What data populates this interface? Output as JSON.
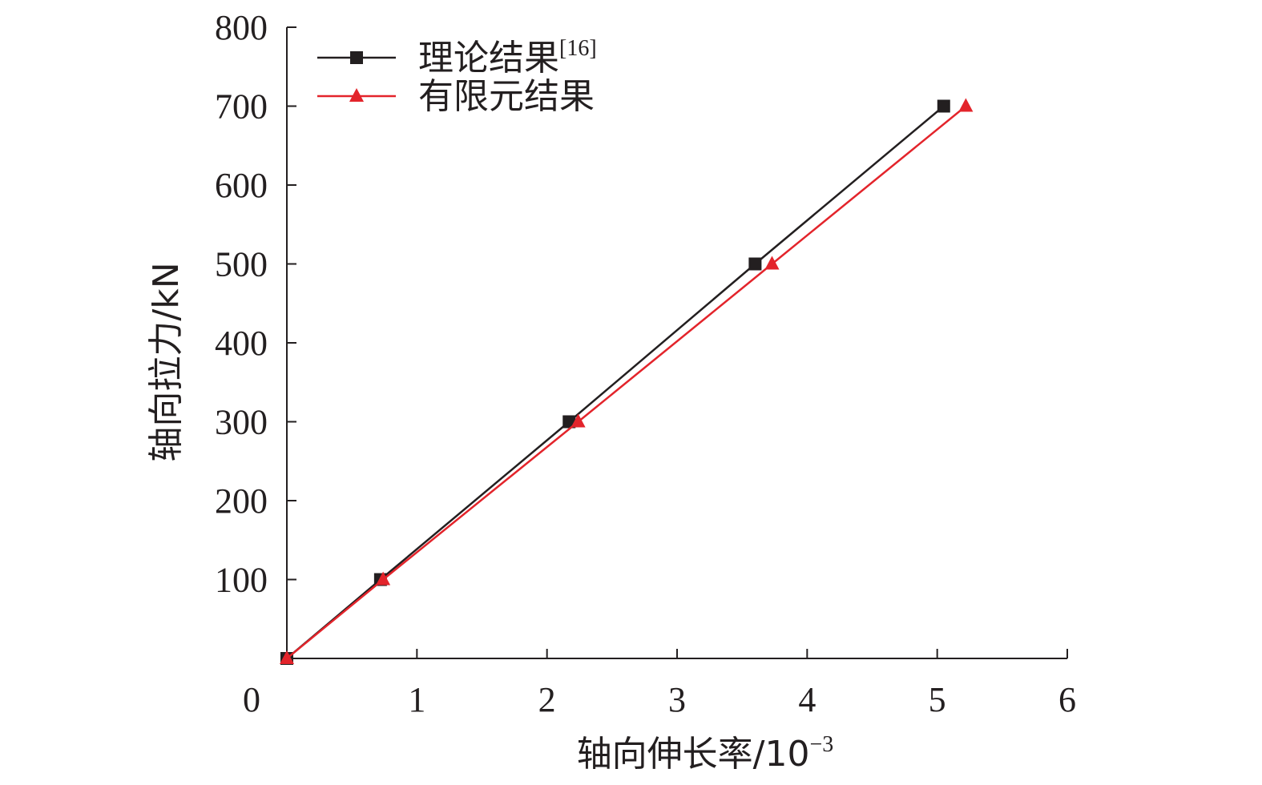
{
  "chart_data": {
    "type": "line",
    "title": "",
    "xlabel": "轴向伸长率/10",
    "xlabel_exponent": "−3",
    "ylabel": "轴向拉力/kN",
    "xlim": [
      0,
      6
    ],
    "ylim": [
      0,
      800
    ],
    "x_ticks": [
      0,
      1,
      2,
      3,
      4,
      5,
      6
    ],
    "y_ticks": [
      100,
      200,
      300,
      400,
      500,
      600,
      700,
      800
    ],
    "x_origin_label": "0",
    "grid": false,
    "legend_position": "top-left",
    "series": [
      {
        "name": "理论结果",
        "name_suffix": "[16]",
        "color": "#231f20",
        "marker": "square",
        "x": [
          0.0,
          0.72,
          2.17,
          3.6,
          5.05
        ],
        "y": [
          0,
          100,
          300,
          500,
          700
        ]
      },
      {
        "name": "有限元结果",
        "name_suffix": "",
        "color": "#e3242b",
        "marker": "triangle",
        "x": [
          0.0,
          0.74,
          2.24,
          3.73,
          5.22
        ],
        "y": [
          0,
          100,
          300,
          500,
          700
        ]
      }
    ]
  }
}
